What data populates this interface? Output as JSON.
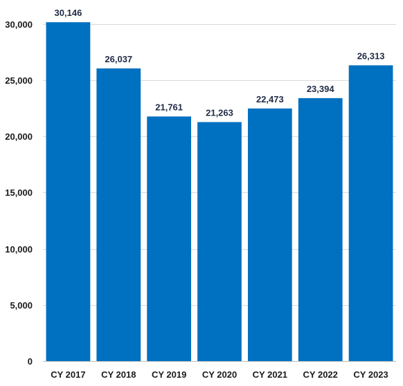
{
  "chart_data": {
    "type": "bar",
    "title": "",
    "xlabel": "",
    "ylabel": "",
    "categories": [
      "CY 2017",
      "CY 2018",
      "CY 2019",
      "CY 2020",
      "CY 2021",
      "CY 2022",
      "CY 2023"
    ],
    "values": [
      30146,
      26037,
      21761,
      21263,
      22473,
      23394,
      26313
    ],
    "data_labels": [
      "30,146",
      "26,037",
      "21,761",
      "21,263",
      "22,473",
      "23,394",
      "26,313"
    ],
    "ylim": [
      0,
      30000
    ],
    "yticks": [
      0,
      5000,
      10000,
      15000,
      20000,
      25000,
      30000
    ],
    "ytick_labels": [
      "0",
      "5,000",
      "10,000",
      "15,000",
      "20,000",
      "25,000",
      "30,000"
    ],
    "grid": true,
    "legend": "none",
    "bar_color": "#0070c0"
  }
}
